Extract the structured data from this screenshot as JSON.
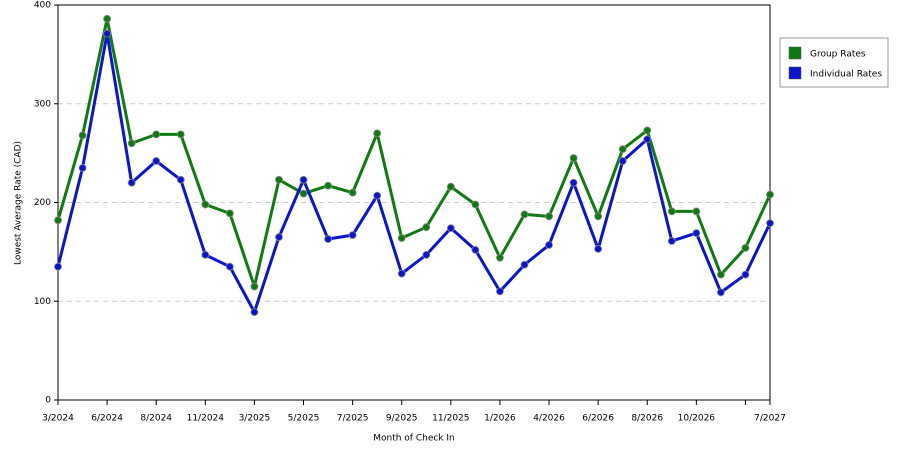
{
  "chart_data": {
    "type": "line",
    "x_label": "Month of Check In",
    "y_label": "Lowest Average Rate (CAD)",
    "categories": [
      "3/2024",
      null,
      "6/2024",
      null,
      "8/2024",
      null,
      "11/2024",
      null,
      "3/2025",
      null,
      "5/2025",
      null,
      "7/2025",
      null,
      "9/2025",
      null,
      "11/2025",
      null,
      "1/2026",
      null,
      "4/2026",
      null,
      "6/2026",
      null,
      "8/2026",
      null,
      "10/2026",
      null,
      null,
      "7/2027"
    ],
    "series": [
      {
        "name": "Group Rates",
        "color": "#0f7a0f",
        "values": [
          182,
          268,
          386,
          260,
          269,
          269,
          198,
          189,
          115,
          223,
          209,
          217,
          210,
          270,
          164,
          175,
          216,
          198,
          144,
          188,
          186,
          245,
          186,
          254,
          273,
          191,
          191,
          127,
          154,
          208
        ]
      },
      {
        "name": "Individual Rates",
        "color": "#0a14d2",
        "values": [
          135,
          235,
          371,
          220,
          242,
          223,
          147,
          135,
          89,
          165,
          223,
          163,
          167,
          207,
          128,
          147,
          174,
          152,
          110,
          137,
          157,
          220,
          153,
          242,
          264,
          161,
          169,
          109,
          127,
          179
        ]
      }
    ],
    "ylim": [
      0,
      400
    ],
    "yticks": [
      0,
      100,
      200,
      300,
      400
    ],
    "grid": true,
    "legend": "right"
  }
}
